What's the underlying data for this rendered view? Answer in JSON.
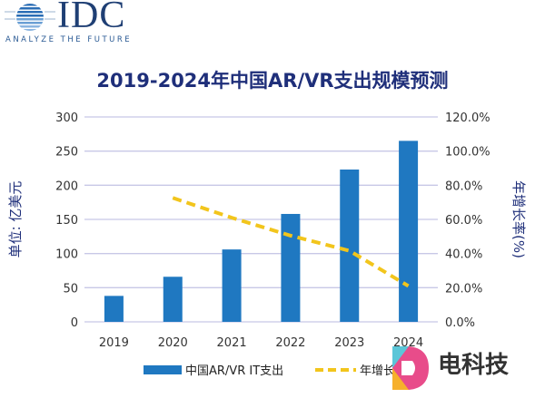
{
  "logo": {
    "name": "IDC",
    "tagline": "ANALYZE THE FUTURE"
  },
  "watermark": {
    "text": "电科技"
  },
  "chart_data": {
    "type": "bar",
    "title": "2019-2024年中国AR/VR支出规模预测",
    "categories": [
      "2019",
      "2020",
      "2021",
      "2022",
      "2023",
      "2024"
    ],
    "ylabel": "单位: 亿美元",
    "y2label": "年增长率(%)",
    "ylim": [
      0,
      300
    ],
    "y2lim": [
      0,
      120
    ],
    "yticks": [
      "0",
      "50",
      "100",
      "150",
      "200",
      "250",
      "300"
    ],
    "y2ticks": [
      "0.0%",
      "20.0%",
      "40.0%",
      "60.0%",
      "80.0%",
      "100.0%",
      "120.0%"
    ],
    "grid": true,
    "legend": "bottom",
    "series": [
      {
        "name": "中国AR/VR IT支出",
        "type": "bar",
        "axis": "left",
        "color": "#1f78c1",
        "values": [
          38,
          66,
          106,
          158,
          223,
          265
        ]
      },
      {
        "name": "年增长率",
        "type": "line",
        "style": "dashed",
        "axis": "right",
        "color": "#f2c51c",
        "values": [
          null,
          72.6,
          61,
          50.5,
          41.6,
          21
        ]
      }
    ]
  }
}
